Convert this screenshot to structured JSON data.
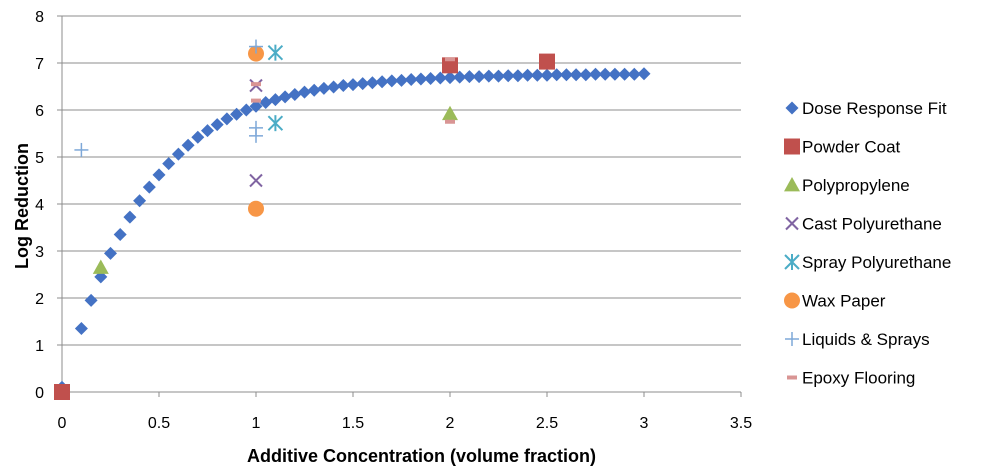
{
  "chart_data": {
    "type": "scatter",
    "xlabel": "Additive Concentration (volume fraction)",
    "ylabel": "Log  Reduction",
    "xlim": [
      0,
      3.5
    ],
    "ylim": [
      0,
      8
    ],
    "xticks": [
      0,
      0.5,
      1,
      1.5,
      2,
      2.5,
      3,
      3.5
    ],
    "xtick_labels": [
      "0",
      "0.5",
      "1",
      "1.5",
      "2",
      "2.5",
      "3",
      "3.5"
    ],
    "yticks": [
      0,
      1,
      2,
      3,
      4,
      5,
      6,
      7,
      8
    ],
    "ytick_labels": [
      "0",
      "1",
      "2",
      "3",
      "4",
      "5",
      "6",
      "7",
      "8"
    ],
    "grid": "horizontal",
    "legend_position": "right",
    "series": [
      {
        "name": "Dose Response Fit",
        "marker": "diamond",
        "color": "#4472C4",
        "x": [
          0,
          0.1,
          0.15,
          0.2,
          0.25,
          0.3,
          0.35,
          0.4,
          0.45,
          0.5,
          0.55,
          0.6,
          0.65,
          0.7,
          0.75,
          0.8,
          0.85,
          0.9,
          0.95,
          1.0,
          1.05,
          1.1,
          1.15,
          1.2,
          1.25,
          1.3,
          1.35,
          1.4,
          1.45,
          1.5,
          1.55,
          1.6,
          1.65,
          1.7,
          1.75,
          1.8,
          1.85,
          1.9,
          1.95,
          2.0,
          2.05,
          2.1,
          2.15,
          2.2,
          2.25,
          2.3,
          2.35,
          2.4,
          2.45,
          2.5,
          2.55,
          2.6,
          2.65,
          2.7,
          2.75,
          2.8,
          2.85,
          2.9,
          2.95,
          3.0
        ],
        "y": [
          0.1,
          1.35,
          1.95,
          2.45,
          2.95,
          3.35,
          3.72,
          4.07,
          4.36,
          4.62,
          4.86,
          5.06,
          5.25,
          5.42,
          5.56,
          5.69,
          5.81,
          5.91,
          6.0,
          6.08,
          6.16,
          6.22,
          6.28,
          6.33,
          6.38,
          6.42,
          6.46,
          6.49,
          6.52,
          6.54,
          6.56,
          6.58,
          6.6,
          6.62,
          6.63,
          6.65,
          6.66,
          6.67,
          6.68,
          6.69,
          6.7,
          6.71,
          6.71,
          6.72,
          6.72,
          6.73,
          6.73,
          6.74,
          6.74,
          6.74,
          6.75,
          6.75,
          6.75,
          6.75,
          6.76,
          6.76,
          6.76,
          6.76,
          6.76,
          6.77
        ]
      },
      {
        "name": "Powder Coat",
        "marker": "square",
        "color": "#C0504D",
        "x": [
          0,
          2,
          2.5
        ],
        "y": [
          0,
          6.95,
          7.03
        ]
      },
      {
        "name": "Polypropylene",
        "marker": "triangle",
        "color": "#9BBB59",
        "x": [
          0.2,
          2
        ],
        "y": [
          2.65,
          5.92
        ]
      },
      {
        "name": "Cast Polyurethane",
        "marker": "x",
        "color": "#8064A2",
        "x": [
          1,
          1
        ],
        "y": [
          6.52,
          4.5
        ]
      },
      {
        "name": "Spray Polyurethane",
        "marker": "asterisk",
        "color": "#4BACC6",
        "x": [
          1.1,
          1.1
        ],
        "y": [
          7.22,
          5.72
        ]
      },
      {
        "name": "Wax Paper",
        "marker": "circle",
        "color": "#F79646",
        "x": [
          1,
          1
        ],
        "y": [
          7.2,
          3.9
        ]
      },
      {
        "name": "Liquids & Sprays",
        "marker": "plus",
        "color": "#7EA8D8",
        "x": [
          0.1,
          1,
          1,
          1
        ],
        "y": [
          5.15,
          7.35,
          5.62,
          5.45
        ]
      },
      {
        "name": "Epoxy Flooring",
        "marker": "dash",
        "color": "#D99594",
        "x": [
          1,
          1,
          2,
          2
        ],
        "y": [
          6.55,
          6.2,
          7.08,
          5.75
        ]
      }
    ]
  }
}
